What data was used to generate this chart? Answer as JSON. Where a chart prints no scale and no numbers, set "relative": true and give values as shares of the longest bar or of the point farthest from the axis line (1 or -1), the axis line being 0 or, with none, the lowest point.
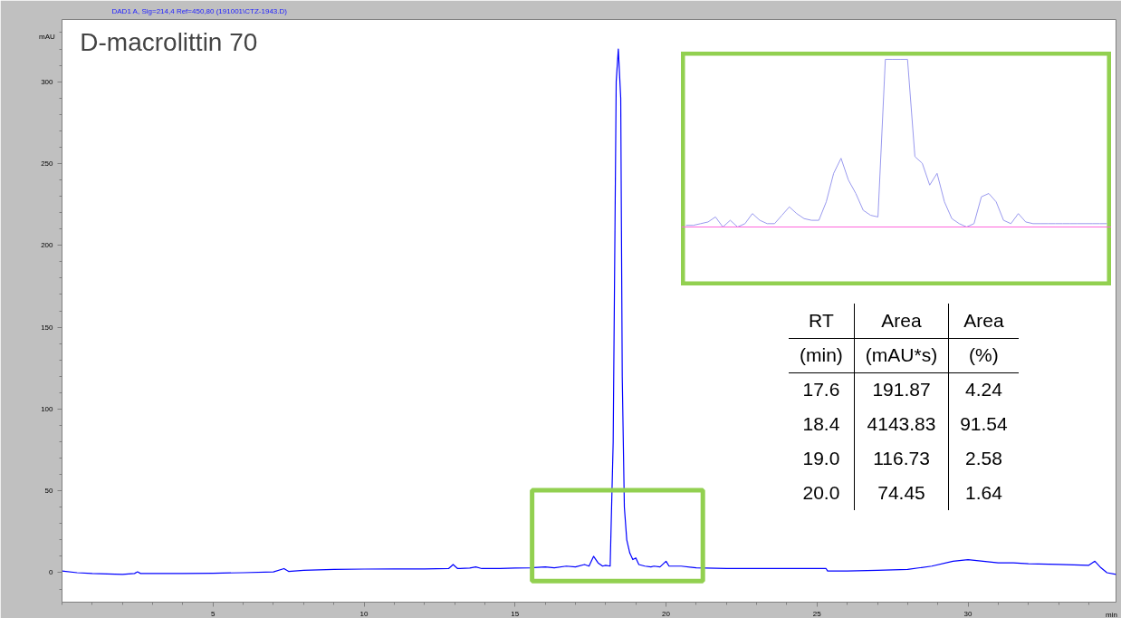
{
  "chart_data": [
    {
      "type": "line",
      "title": "D-macrolittin 70",
      "subtitle": "DAD1 A, Sig=214,4 Ref=450,80 (191001\\CTZ-1943.D)",
      "xlabel": "min",
      "ylabel": "mAU",
      "x": [
        0,
        0.5,
        1,
        2,
        2.4,
        2.5,
        2.6,
        3,
        4,
        5,
        6,
        7,
        7.35,
        7.5,
        8,
        9,
        10,
        11,
        12,
        12.8,
        12.95,
        13.1,
        13.5,
        13.7,
        13.9,
        14.5,
        15,
        15.5,
        16,
        16.3,
        16.7,
        17,
        17.3,
        17.45,
        17.6,
        17.75,
        17.9,
        18.0,
        18.15,
        18.25,
        18.35,
        18.42,
        18.5,
        18.55,
        18.62,
        18.7,
        18.8,
        18.9,
        19.0,
        19.1,
        19.3,
        19.5,
        19.6,
        19.8,
        20.0,
        20.1,
        20.5,
        21,
        22,
        23,
        24,
        25.3,
        25.35,
        26,
        27,
        28,
        28.8,
        29.5,
        30,
        30.5,
        31,
        31.5,
        32,
        33,
        34,
        34.2,
        34.4,
        34.6,
        34.9
      ],
      "series": [
        {
          "color": "#0000ff",
          "values": [
            1,
            0,
            -0.5,
            -1,
            -0.5,
            0.5,
            -0.5,
            -0.5,
            -0.5,
            -0.3,
            0,
            0.5,
            2.5,
            0.8,
            1.5,
            2,
            2.2,
            2.3,
            2.3,
            2.5,
            5,
            2.5,
            2.8,
            3.5,
            2.5,
            2.5,
            2.8,
            3,
            3.5,
            3,
            4,
            3.5,
            5,
            4,
            10,
            6,
            4,
            4.5,
            4,
            80,
            300,
            320,
            290,
            120,
            40,
            20,
            12,
            8,
            9,
            5,
            4,
            3.5,
            4,
            3.5,
            7,
            4,
            4,
            3,
            2.5,
            2.5,
            2.5,
            2.5,
            1,
            1,
            1.5,
            2,
            4,
            7,
            8,
            7,
            6,
            6,
            5.5,
            5,
            4.5,
            7,
            3,
            0,
            -1
          ]
        }
      ],
      "xlim": [
        0,
        34.9
      ],
      "ylim": [
        -18,
        338
      ],
      "xticks": [
        5,
        10,
        15,
        20,
        25,
        30
      ],
      "yticks": [
        0,
        50,
        100,
        150,
        200,
        250,
        300
      ],
      "marker": "none",
      "line_style": "solid",
      "annotations": [
        "RT",
        "Area",
        "Area",
        "(min)",
        "(mAU*s)",
        "(%)",
        "17.6",
        "191.87",
        "4.24",
        "18.4",
        "4143.83",
        "91.54",
        "19.0",
        "116.73",
        "2.58",
        "20.0",
        "74.45",
        "1.64"
      ]
    },
    {
      "type": "line",
      "relative": true,
      "tick_labels": false,
      "marker": "none",
      "line_style": "solid",
      "categories": [
        null,
        null,
        null,
        null,
        null,
        null,
        null,
        null,
        null,
        null,
        null,
        null,
        null,
        null,
        null,
        null,
        null,
        null,
        null,
        null,
        null,
        null,
        null,
        null,
        null,
        null,
        null,
        null,
        null,
        null,
        null,
        null,
        null,
        null,
        null,
        null,
        null,
        null,
        null,
        null,
        null,
        null,
        null,
        null,
        null,
        null,
        null,
        null,
        null,
        null,
        null,
        null,
        null,
        null,
        null,
        null,
        null,
        null
      ],
      "series": [
        {
          "color": "#9999ee",
          "values": [
            0.01,
            0.01,
            0.02,
            0.03,
            0.06,
            0,
            0.04,
            0,
            0.02,
            0.08,
            0.04,
            0.02,
            0.02,
            0.07,
            0.12,
            0.08,
            0.05,
            0.04,
            0.04,
            0.15,
            0.32,
            0.41,
            0.28,
            0.2,
            0.1,
            0.07,
            0.06,
            1,
            1,
            1,
            1,
            0.42,
            0.38,
            0.25,
            0.32,
            0.15,
            0.05,
            0.02,
            0,
            0.02,
            0.18,
            0.2,
            0.15,
            0.04,
            0.02,
            0.08,
            0.03,
            0.02,
            0.02,
            0.02,
            0.02,
            0.02,
            0.02,
            0.02,
            0.02,
            0.02,
            0.02,
            0.02
          ]
        }
      ],
      "ref_lines": [
        {
          "axis": "y",
          "value": 0,
          "color": "#ff66dd"
        }
      ]
    }
  ]
}
